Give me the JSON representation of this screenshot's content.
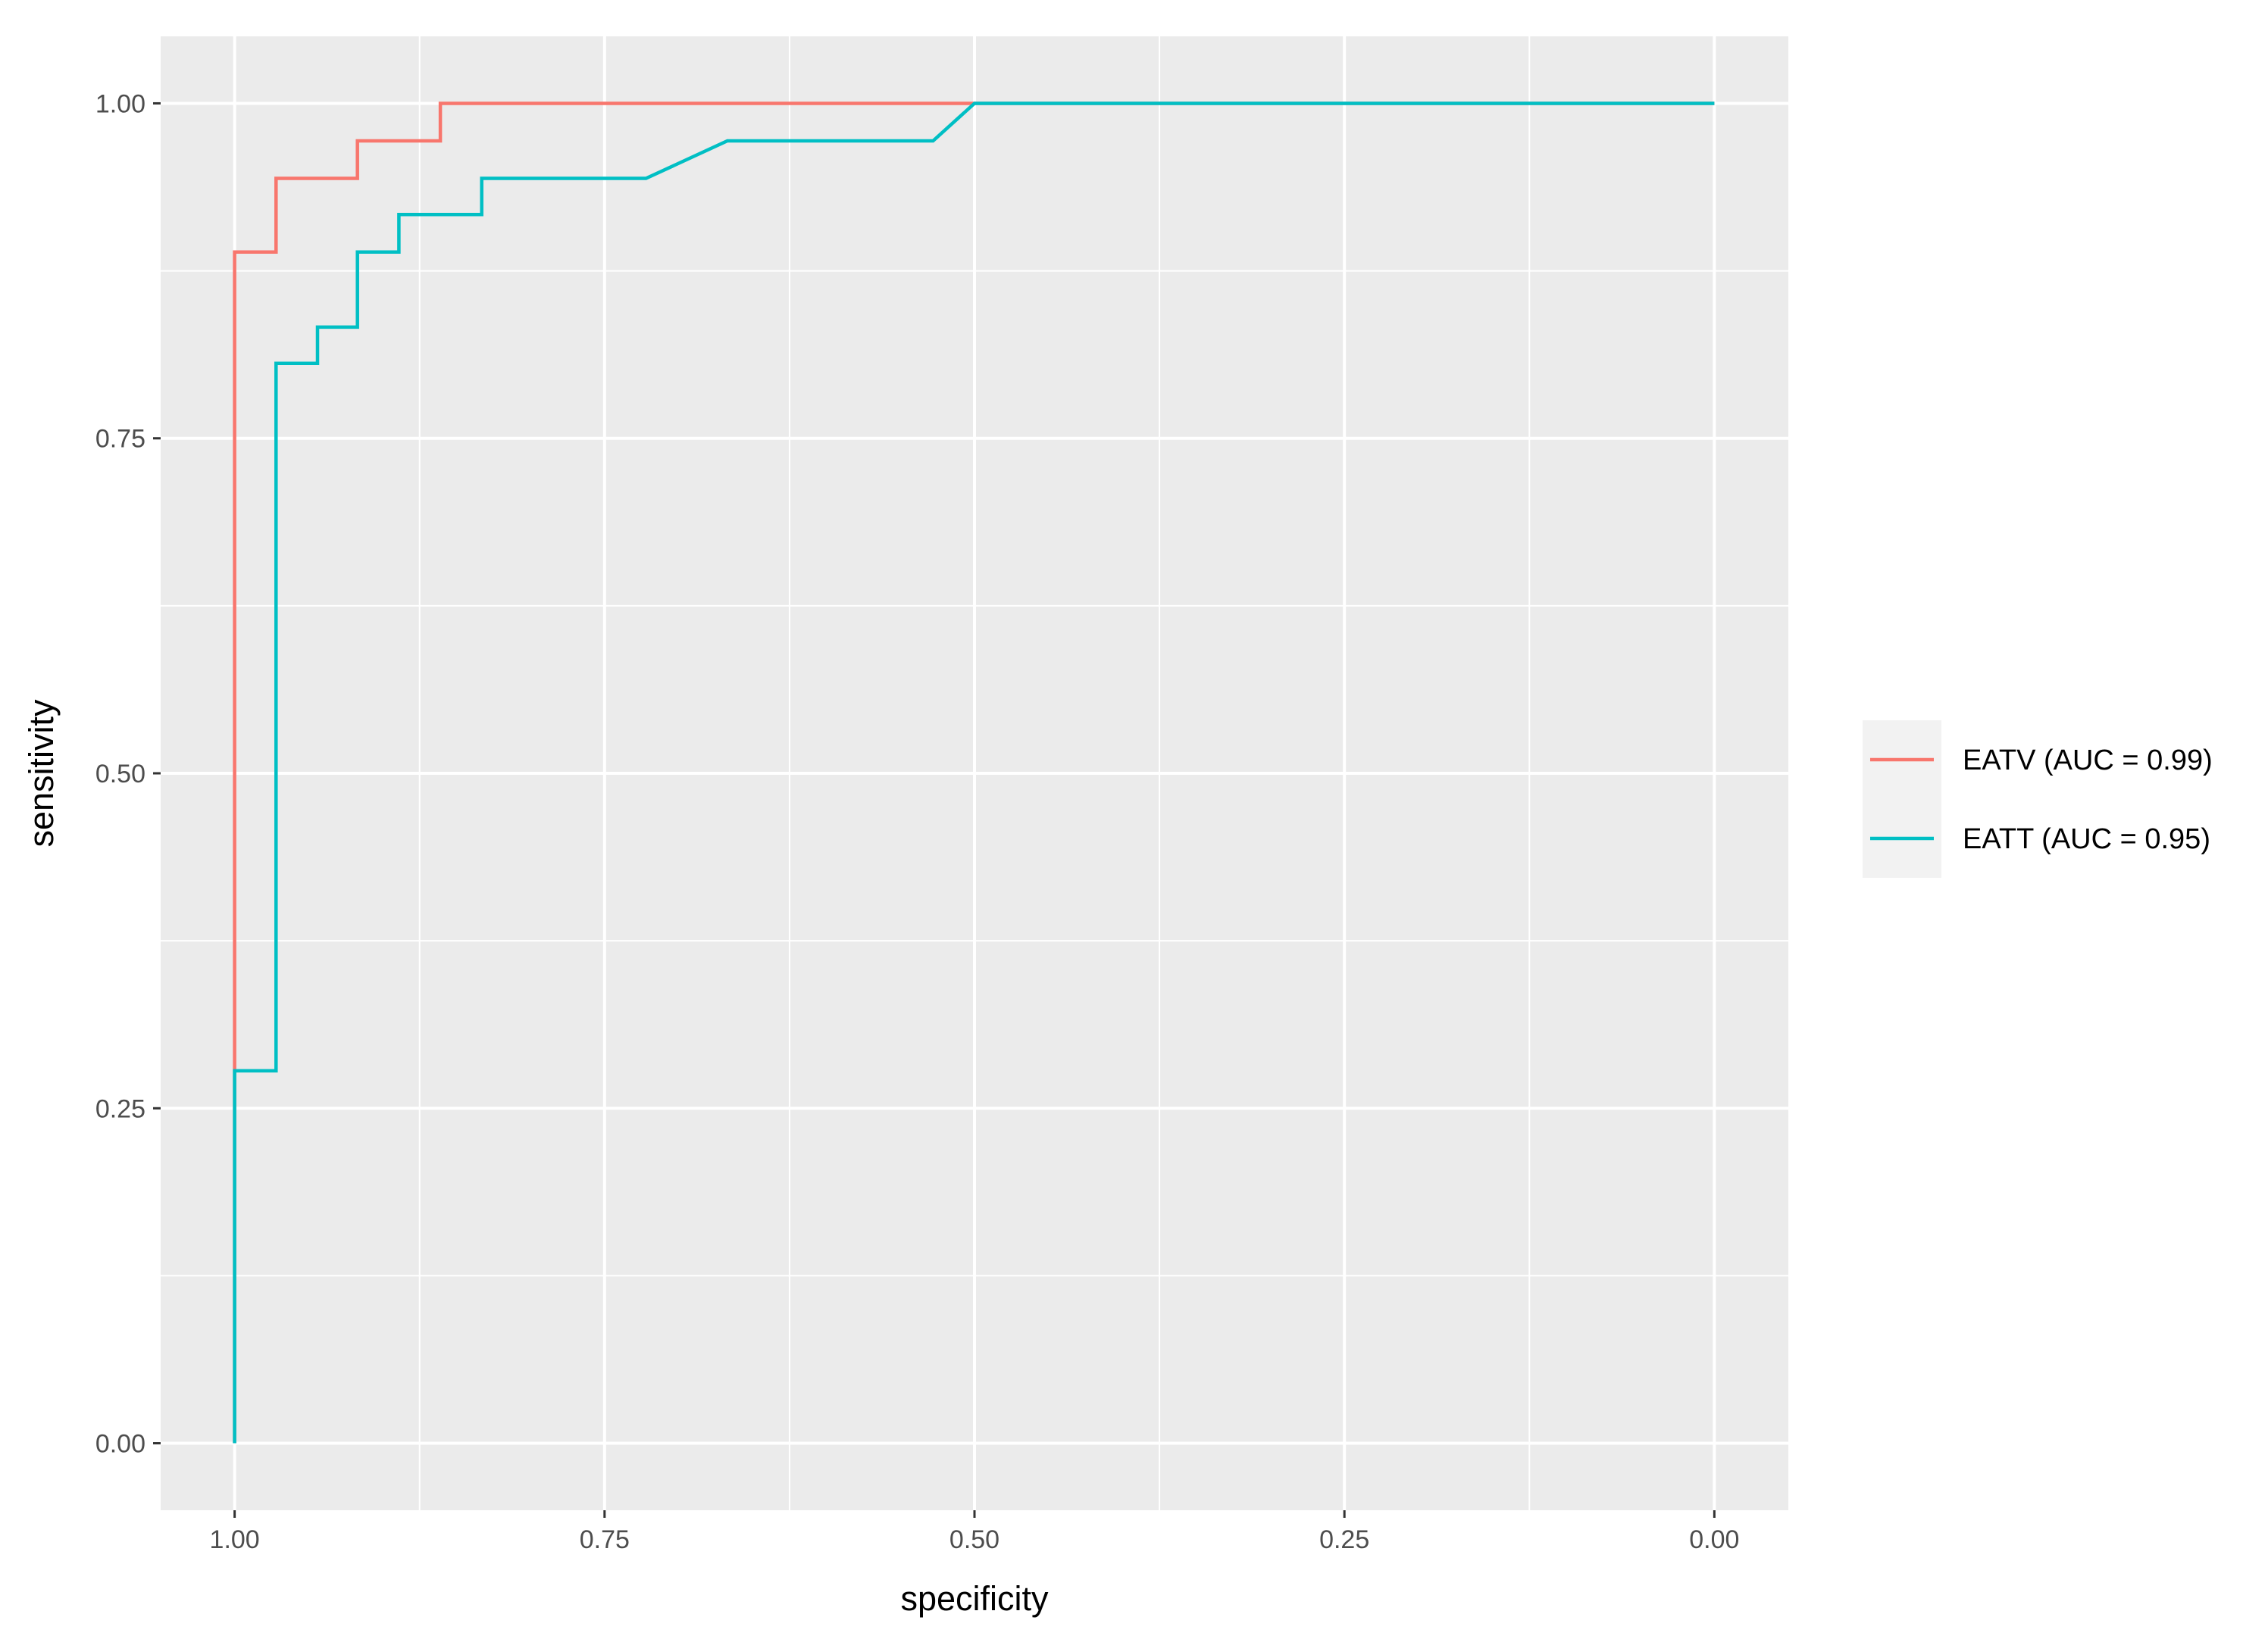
{
  "chart_data": {
    "type": "line",
    "title": "",
    "xlabel": "specificity",
    "ylabel": "sensitivity",
    "xlim": [
      1.05,
      -0.05
    ],
    "ylim": [
      -0.05,
      1.05
    ],
    "x_reversed": true,
    "x_ticks": [
      {
        "value": 1.0,
        "label": "1.00"
      },
      {
        "value": 0.75,
        "label": "0.75"
      },
      {
        "value": 0.5,
        "label": "0.50"
      },
      {
        "value": 0.25,
        "label": "0.25"
      },
      {
        "value": 0.0,
        "label": "0.00"
      }
    ],
    "y_ticks": [
      {
        "value": 0.0,
        "label": "0.00"
      },
      {
        "value": 0.25,
        "label": "0.25"
      },
      {
        "value": 0.5,
        "label": "0.50"
      },
      {
        "value": 0.75,
        "label": "0.75"
      },
      {
        "value": 1.0,
        "label": "1.00"
      }
    ],
    "grid": true,
    "legend_position": "right",
    "series": [
      {
        "name": "EATV (AUC = 0.99)",
        "color": "#F8766D",
        "points": [
          [
            1.0,
            0.0
          ],
          [
            1.0,
            0.889
          ],
          [
            0.972,
            0.889
          ],
          [
            0.972,
            0.944
          ],
          [
            0.917,
            0.944
          ],
          [
            0.917,
            0.972
          ],
          [
            0.861,
            0.972
          ],
          [
            0.861,
            1.0
          ],
          [
            0.5,
            1.0
          ],
          [
            0.0,
            1.0
          ]
        ]
      },
      {
        "name": "EATT (AUC = 0.95)",
        "color": "#00BFC4",
        "points": [
          [
            1.0,
            0.0
          ],
          [
            1.0,
            0.278
          ],
          [
            0.972,
            0.278
          ],
          [
            0.972,
            0.806
          ],
          [
            0.944,
            0.806
          ],
          [
            0.944,
            0.833
          ],
          [
            0.917,
            0.833
          ],
          [
            0.917,
            0.889
          ],
          [
            0.889,
            0.889
          ],
          [
            0.889,
            0.917
          ],
          [
            0.833,
            0.917
          ],
          [
            0.833,
            0.944
          ],
          [
            0.722,
            0.944
          ],
          [
            0.667,
            0.972
          ],
          [
            0.528,
            0.972
          ],
          [
            0.5,
            1.0
          ],
          [
            0.0,
            1.0
          ]
        ]
      }
    ]
  },
  "colors": {
    "panel_background": "#EBEBEB",
    "grid_major": "#FFFFFF",
    "legend_key_background": "#F2F2F2"
  }
}
